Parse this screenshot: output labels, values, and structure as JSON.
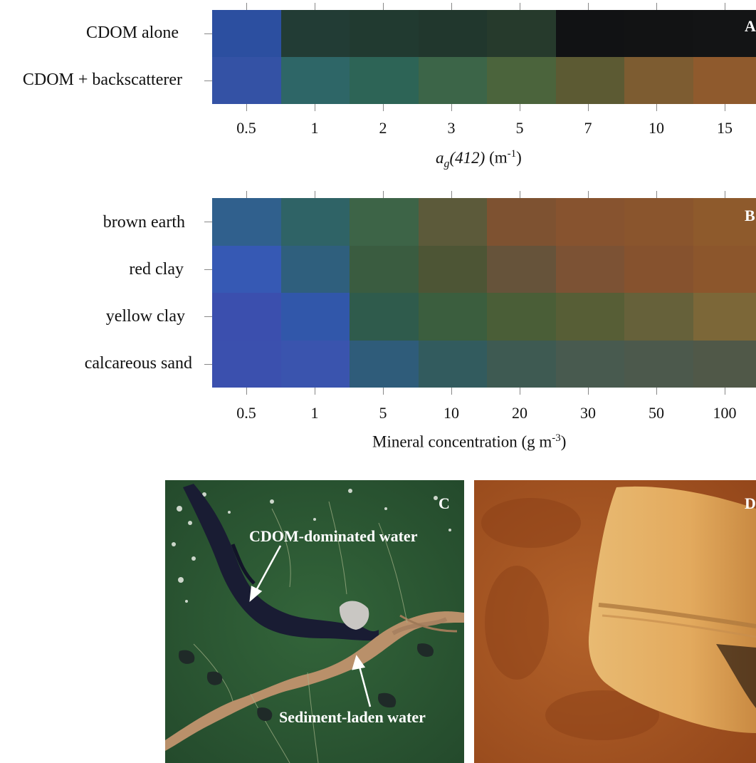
{
  "panel_a": {
    "letter": "A",
    "rows": [
      "CDOM alone",
      "CDOM + backscatterer"
    ],
    "ticks": [
      "0.5",
      "1",
      "2",
      "3",
      "5",
      "7",
      "10",
      "15"
    ],
    "axis_label_main": "a",
    "axis_label_sub": "g",
    "axis_label_arg": "(412)",
    "axis_label_unit_pre": " (m",
    "axis_label_unit_sup": "-1",
    "axis_label_unit_post": ")",
    "colors": [
      [
        "#2c4fa0",
        "#223c35",
        "#213a30",
        "#21372d",
        "#263a2c",
        "#111214",
        "#121314",
        "#131415"
      ],
      [
        "#3452a5",
        "#2e6667",
        "#2d6456",
        "#3c6548",
        "#4b643c",
        "#5c5a33",
        "#7d5c31",
        "#8f5a2d"
      ]
    ]
  },
  "panel_b": {
    "letter": "B",
    "rows": [
      "brown earth",
      "red clay",
      "yellow clay",
      "calcareous sand"
    ],
    "ticks": [
      "0.5",
      "1",
      "5",
      "10",
      "20",
      "30",
      "50",
      "100"
    ],
    "axis_label_pre": "Mineral concentration (g m",
    "axis_label_sup": "-3",
    "axis_label_post": ")",
    "colors": [
      [
        "#30608d",
        "#2f6366",
        "#3d6447",
        "#5c5a3a",
        "#7e5231",
        "#87532f",
        "#8a552d",
        "#8e5a2c"
      ],
      [
        "#3659b4",
        "#2f5f7d",
        "#3a5c40",
        "#4d5535",
        "#66533a",
        "#7c5234",
        "#86522e",
        "#8c562c"
      ],
      [
        "#3b4fae",
        "#3157aa",
        "#2f5b4c",
        "#3b5e3e",
        "#4a5e37",
        "#575e36",
        "#66613a",
        "#7c6738"
      ],
      [
        "#3b50ae",
        "#3a54ae",
        "#2f5c7a",
        "#325b5e",
        "#3e5a52",
        "#485a4f",
        "#4c594c",
        "#505848"
      ]
    ]
  },
  "panel_c": {
    "letter": "C",
    "label_top": "CDOM-dominated water",
    "label_bottom": "Sediment-laden water"
  },
  "panel_d": {
    "letter": "D"
  }
}
